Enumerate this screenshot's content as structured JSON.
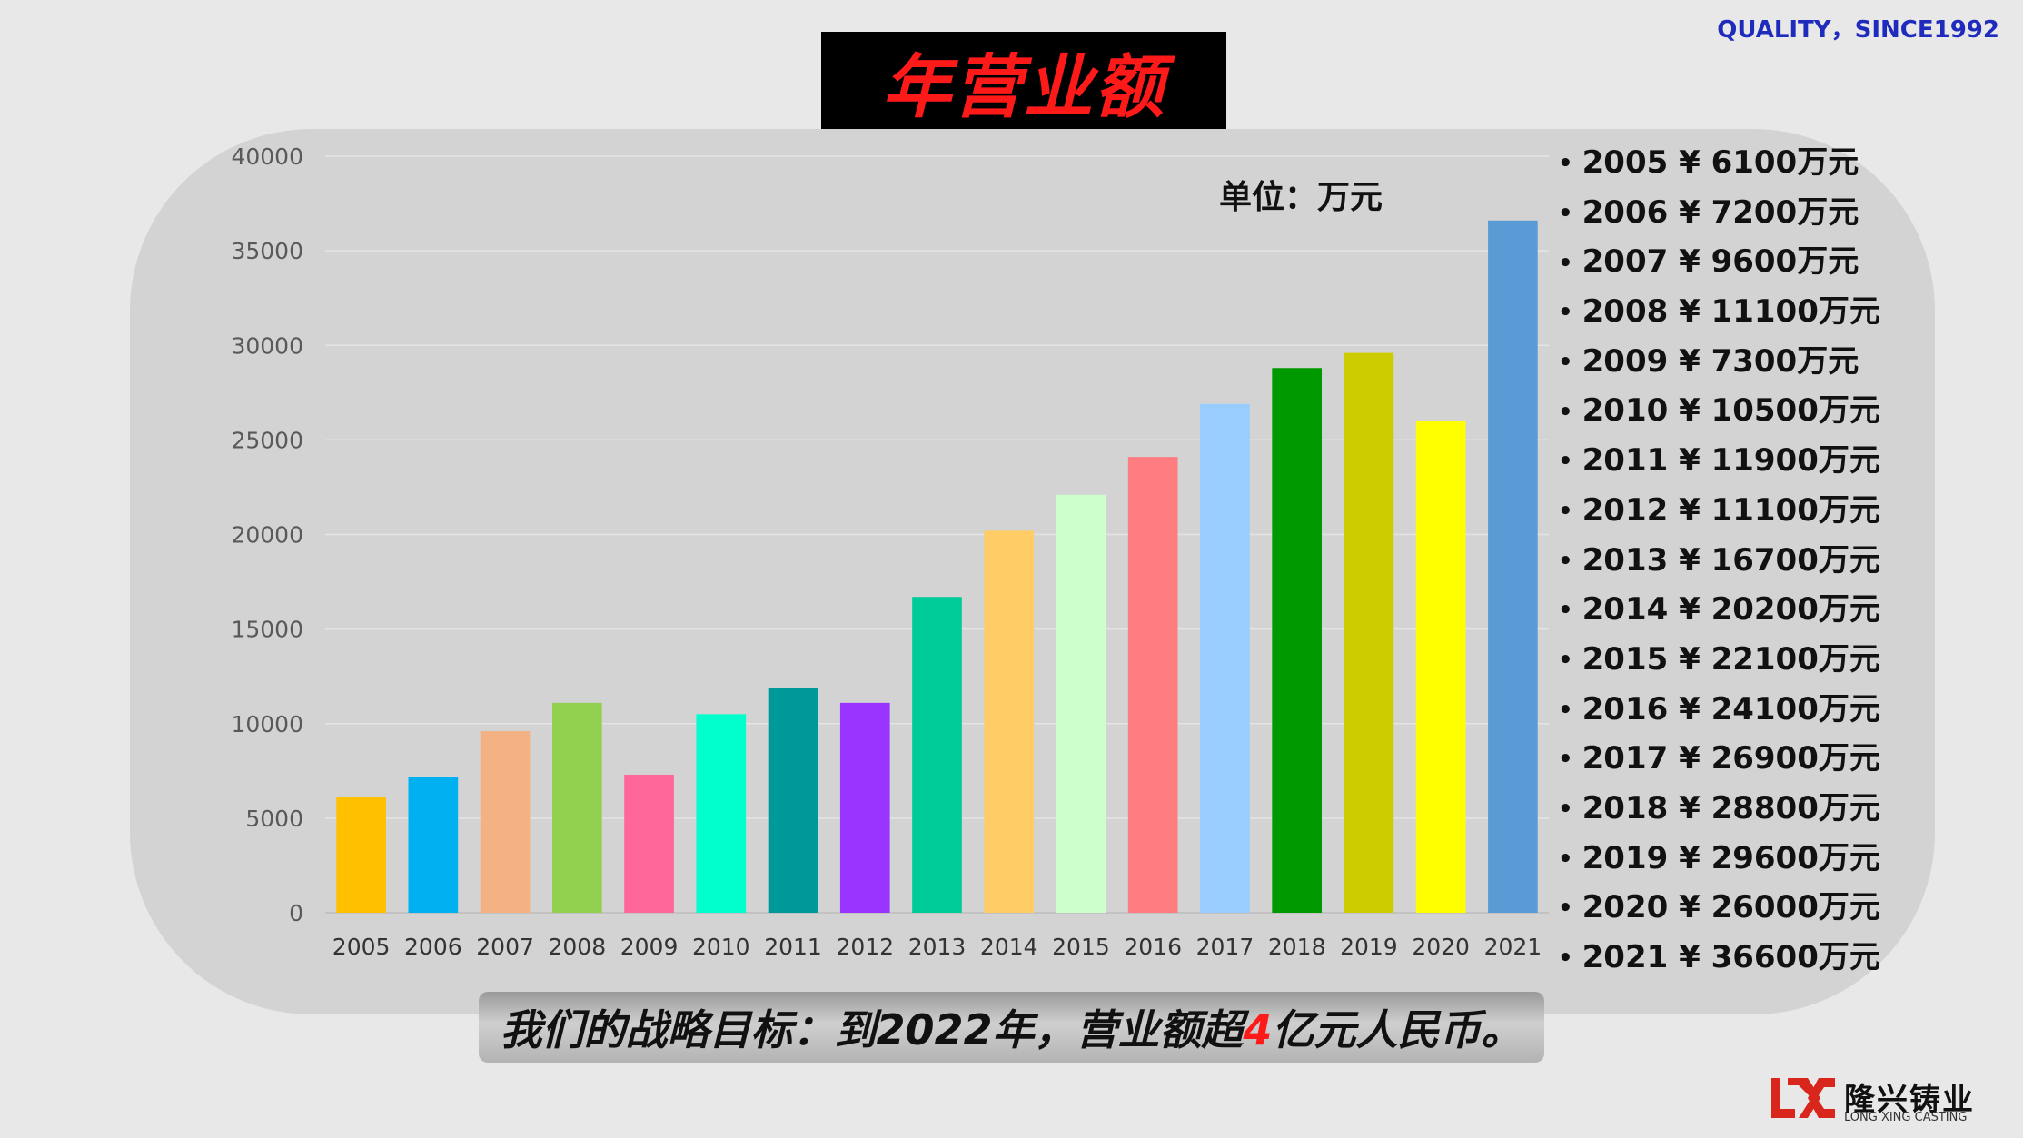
{
  "header": {
    "tagline": "QUALITY，SINCE1992",
    "title": "年营业额"
  },
  "unit_label": "单位：万元",
  "values_list": [
    "2005 ¥ 6100万元",
    "2006 ¥ 7200万元",
    "2007 ¥ 9600万元",
    "2008 ¥ 11100万元",
    "2009 ¥ 7300万元",
    "2010 ¥ 10500万元",
    "2011 ¥ 11900万元",
    "2012 ¥ 11100万元",
    "2013 ¥ 16700万元",
    "2014 ¥ 20200万元",
    "2015 ¥ 22100万元",
    "2016 ¥ 24100万元",
    "2017 ¥ 26900万元",
    "2018 ¥ 28800万元",
    "2019 ¥ 29600万元",
    "2020 ¥ 26000万元",
    "2021 ¥ 36600万元"
  ],
  "goal": {
    "before": "我们的战略目标：到2022年，营业额超",
    "highlight": "4",
    "after": "亿元人民币。"
  },
  "logo": {
    "name_cn": "隆兴铸业",
    "name_en": "LONG XING CASTING"
  },
  "colors": {
    "background": "#e8e8e8",
    "panel": "#d3d3d3",
    "title_red": "#ff1a1a",
    "tagline_blue": "#1f2bbd",
    "logo_red": "#d9261c"
  },
  "chart_data": {
    "type": "bar",
    "categories": [
      "2005",
      "2006",
      "2007",
      "2008",
      "2009",
      "2010",
      "2011",
      "2012",
      "2013",
      "2014",
      "2015",
      "2016",
      "2017",
      "2018",
      "2019",
      "2020",
      "2021"
    ],
    "values": [
      6100,
      7200,
      9600,
      11100,
      7300,
      10500,
      11900,
      11100,
      16700,
      20200,
      22100,
      24100,
      26900,
      28800,
      29600,
      26000,
      36600
    ],
    "bar_colors": [
      "#ffc000",
      "#00b0f0",
      "#f4b183",
      "#92d050",
      "#ff6699",
      "#00ffcc",
      "#009999",
      "#9933ff",
      "#00cc99",
      "#ffcc66",
      "#ccffcc",
      "#ff7c80",
      "#99ccff",
      "#009900",
      "#cccc00",
      "#ffff00",
      "#5b9bd5"
    ],
    "ylim": [
      0,
      40000
    ],
    "yticks": [
      "0",
      "5000",
      "10000",
      "15000",
      "20000",
      "25000",
      "30000",
      "35000",
      "40000"
    ],
    "grid": true,
    "legend": "none"
  }
}
